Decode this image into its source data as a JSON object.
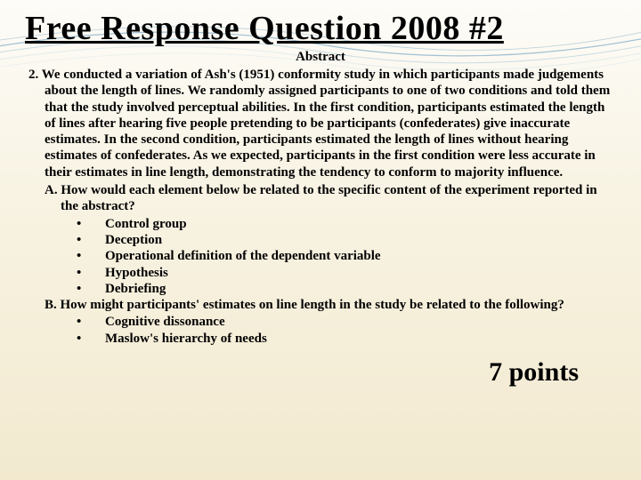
{
  "title": "Free Response Question 2008 #2",
  "abstract_label": "Abstract",
  "question_number": "2.",
  "abstract_text": "We conducted a variation of Ash's (1951) conformity study in which participants made judgements about the length of lines.  We randomly assigned participants to one of two conditions and told them that the study involved perceptual abilities.  In the first condition, participants estimated the length of lines after hearing five people pretending to be participants (confederates) give inaccurate estimates.  In the second condition, participants estimated the length of lines without hearing estimates of confederates.  As we expected, participants in the first condition were less accurate in their estimates in line length, demonstrating the tendency to conform to majority influence.",
  "part_a": "A.  How would each element below be related to the specific content of the experiment reported in the abstract?",
  "bullets_a": [
    "Control group",
    "Deception",
    "Operational definition of the dependent variable",
    "Hypothesis",
    "Debriefing"
  ],
  "part_b": "B.  How might participants' estimates on line length in the study be related to the following?",
  "bullets_b": [
    "Cognitive dissonance",
    "Maslow's hierarchy of needs"
  ],
  "points_label": "7 points",
  "colors": {
    "wave1": "#7aa8c4",
    "wave2": "#a8c8d8",
    "wave3": "#d0e0e8"
  }
}
